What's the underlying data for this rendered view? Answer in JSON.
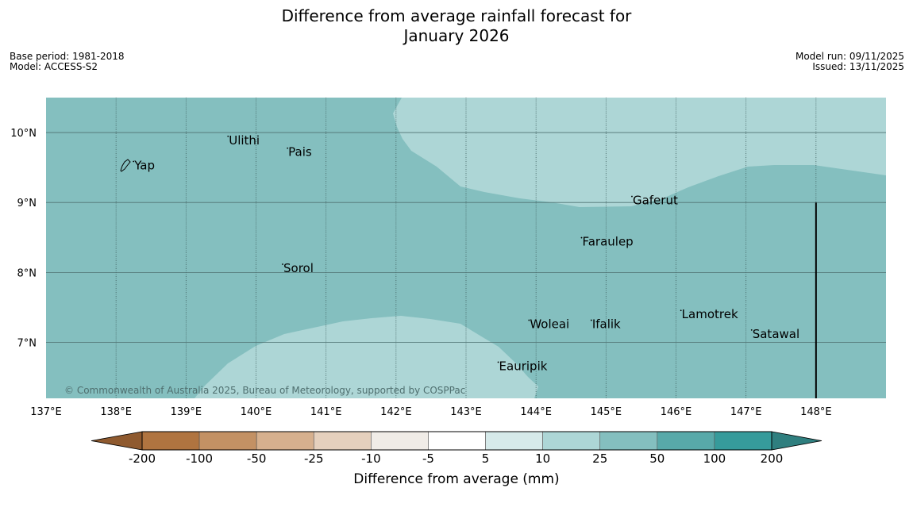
{
  "title": {
    "line1": "Difference from average rainfall forecast for",
    "line2": "January 2026"
  },
  "meta_left": {
    "base_period": "Base period: 1981-2018",
    "model": "Model: ACCESS-S2"
  },
  "meta_right": {
    "model_run": "Model run: 09/11/2025",
    "issued": "Issued: 13/11/2025"
  },
  "map": {
    "lon_range": [
      137,
      149
    ],
    "lat_range": [
      6.2,
      10.5
    ],
    "lon_ticks": [
      {
        "value": 137,
        "label": "137°E"
      },
      {
        "value": 138,
        "label": "138°E"
      },
      {
        "value": 139,
        "label": "139°E"
      },
      {
        "value": 140,
        "label": "140°E"
      },
      {
        "value": 141,
        "label": "141°E"
      },
      {
        "value": 142,
        "label": "142°E"
      },
      {
        "value": 143,
        "label": "143°E"
      },
      {
        "value": 144,
        "label": "144°E"
      },
      {
        "value": 145,
        "label": "145°E"
      },
      {
        "value": 146,
        "label": "146°E"
      },
      {
        "value": 147,
        "label": "147°E"
      },
      {
        "value": 148,
        "label": "148°E"
      }
    ],
    "lat_ticks": [
      {
        "value": 10,
        "label": "10°N"
      },
      {
        "value": 9,
        "label": "9°N"
      },
      {
        "value": 8,
        "label": "8°N"
      },
      {
        "value": 7,
        "label": "7°N"
      }
    ],
    "background_color": "#84bfbf",
    "light_color": "#add6d6",
    "places": [
      {
        "name": "Yap",
        "lon": 138.25,
        "lat": 9.53
      },
      {
        "name": "Ulithi",
        "lon": 139.6,
        "lat": 9.89
      },
      {
        "name": "Pais",
        "lon": 140.45,
        "lat": 9.72
      },
      {
        "name": "Sorol",
        "lon": 140.38,
        "lat": 8.06
      },
      {
        "name": "Gaferut",
        "lon": 145.37,
        "lat": 9.03
      },
      {
        "name": "Faraulep",
        "lon": 144.65,
        "lat": 8.44
      },
      {
        "name": "Woleai",
        "lon": 143.9,
        "lat": 7.26
      },
      {
        "name": "Ifalik",
        "lon": 144.79,
        "lat": 7.26
      },
      {
        "name": "Lamotrek",
        "lon": 146.07,
        "lat": 7.4
      },
      {
        "name": "Satawal",
        "lon": 147.08,
        "lat": 7.12
      },
      {
        "name": "Eauripik",
        "lon": 143.46,
        "lat": 6.66
      }
    ],
    "copyright": "© Commonwealth of Australia 2025, Bureau of Meteorology, supported by COSPPac"
  },
  "colorbar": {
    "label": "Difference from average (mm)",
    "ticks": [
      "-200",
      "-100",
      "-50",
      "-25",
      "-10",
      "-5",
      "5",
      "10",
      "25",
      "50",
      "100",
      "200"
    ],
    "colors": [
      "#b07440",
      "#c39164",
      "#d6b08e",
      "#e5d0bd",
      "#f0ece7",
      "#ffffff",
      "#d6eaea",
      "#add6d6",
      "#84bfbf",
      "#58a9a9",
      "#369b9b"
    ],
    "extend_low_color": "#8f5a2f",
    "extend_high_color": "#2f7f7f"
  }
}
